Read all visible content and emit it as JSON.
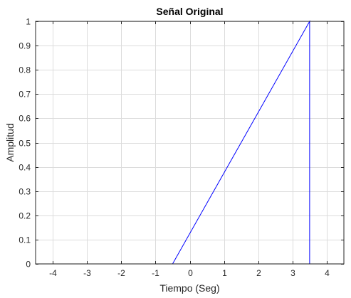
{
  "chart_data": {
    "type": "line",
    "title": "Señal Original",
    "xlabel": "Tiempo (Seg)",
    "ylabel": "Amplitud",
    "xlim": [
      -4.5,
      4.5
    ],
    "ylim": [
      0,
      1
    ],
    "xticks": [
      -4,
      -3,
      -2,
      -1,
      0,
      1,
      2,
      3,
      4
    ],
    "yticks": [
      0,
      0.1,
      0.2,
      0.3,
      0.4,
      0.5,
      0.6,
      0.7,
      0.8,
      0.9,
      1
    ],
    "grid": true,
    "series": [
      {
        "color": "#0000ff",
        "x": [
          -4.5,
          -0.5,
          3.5,
          3.5,
          4.5
        ],
        "y": [
          0,
          0,
          1,
          0,
          0
        ]
      }
    ]
  }
}
